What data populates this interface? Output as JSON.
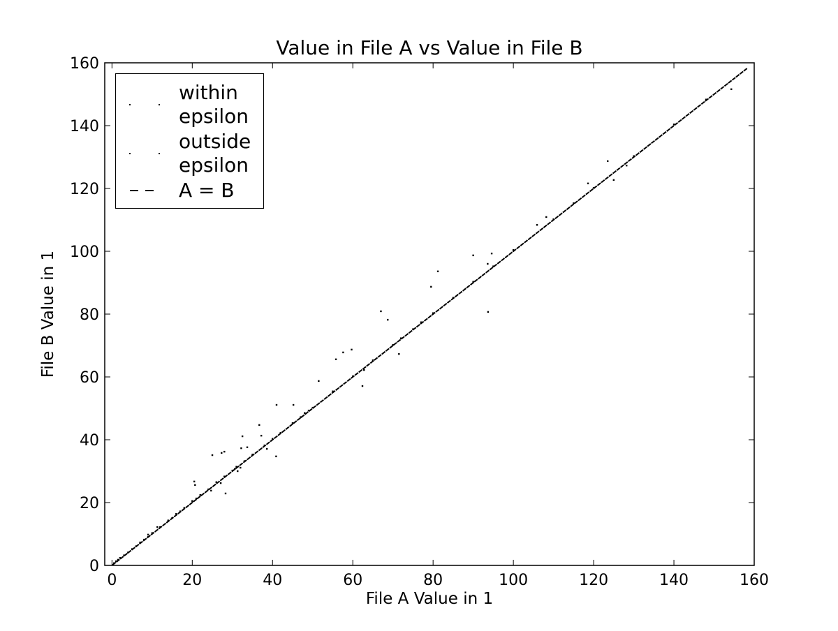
{
  "chart_data": {
    "type": "scatter",
    "title": "Value in File A vs Value in File B",
    "x_label": "File A Value in 1",
    "y_label": "File B Value in 1",
    "xlim": [
      -1.8,
      160
    ],
    "ylim": [
      0,
      160
    ],
    "xticks": [
      0,
      20,
      40,
      60,
      80,
      100,
      120,
      140,
      160
    ],
    "yticks": [
      0,
      20,
      40,
      60,
      80,
      100,
      120,
      140,
      160
    ],
    "grid": false,
    "legend": "upper left",
    "series": [
      {
        "name": "within epsilon",
        "type": "scatter",
        "color": "#000000",
        "x": [
          0.5,
          1,
          1.5,
          2,
          3,
          4,
          5,
          6,
          7,
          8,
          9,
          10,
          12,
          14,
          15,
          16,
          17,
          18,
          20,
          21,
          22,
          24,
          26,
          28,
          30,
          31,
          33,
          35,
          38,
          40,
          42,
          45,
          47,
          48,
          49,
          50,
          55,
          60,
          65,
          70,
          72,
          75,
          77,
          80,
          85,
          90,
          95,
          100,
          110,
          115,
          120,
          130,
          140,
          148
        ],
        "values": [
          0.7,
          1.3,
          1.8,
          2.4,
          3.2,
          4.1,
          5.2,
          6.1,
          7.3,
          8.2,
          9.1,
          10.3,
          12.2,
          14.3,
          15.1,
          16.4,
          17.2,
          18.3,
          20.5,
          21.3,
          22.4,
          24.2,
          26.5,
          28.3,
          30.2,
          31.4,
          33.2,
          35.3,
          38.2,
          40.3,
          42.2,
          45.3,
          47.2,
          48.5,
          49.3,
          50.2,
          55.4,
          60.2,
          65.3,
          70.2,
          72.3,
          75.2,
          77.4,
          80.3,
          85.2,
          90.3,
          95.2,
          100.4,
          110.2,
          115.3,
          120.2,
          130.3,
          140.4,
          148.3
        ]
      },
      {
        "name": "outside epsilon",
        "type": "scatter",
        "color": "#000000",
        "x": [
          154.3,
          123.5,
          125,
          128.2,
          118.6,
          108.2,
          105.9,
          90,
          94.6,
          93.6,
          93.7,
          81.2,
          79.5,
          67,
          68.7,
          71.5,
          55.8,
          57.6,
          59.7,
          62.4,
          62.8,
          51.5,
          41,
          45.2,
          36.7,
          32.5,
          37.2,
          40.9,
          38.6,
          32.2,
          33.7,
          28,
          27.3,
          25,
          28.3,
          20.5,
          20.7,
          27.1,
          30.6,
          32,
          31.3,
          24.7,
          9,
          11.3
        ],
        "values": [
          151.6,
          128.7,
          122.7,
          127.3,
          121.6,
          110.9,
          108.4,
          98.7,
          99.3,
          96,
          80.7,
          93.6,
          88.7,
          80.9,
          78.2,
          67.3,
          65.6,
          67.8,
          68.7,
          57.1,
          62.2,
          58.7,
          51.1,
          51.1,
          44.7,
          41.1,
          41.3,
          34.7,
          37.1,
          37.3,
          37.6,
          36.2,
          35.8,
          35.1,
          22.9,
          26.7,
          25.6,
          26.2,
          30.7,
          31.1,
          30,
          23.8,
          9.8,
          12.2
        ]
      },
      {
        "name": "A = B",
        "type": "line",
        "color": "#000000",
        "linestyle": "dashed",
        "x": [
          -1.8,
          158.3
        ],
        "values": [
          -1.8,
          158.3
        ]
      }
    ]
  }
}
